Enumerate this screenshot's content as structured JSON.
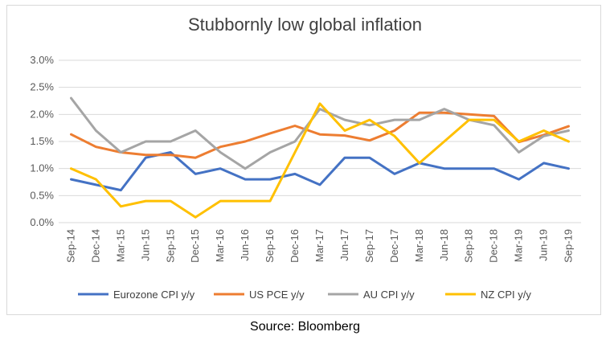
{
  "source": "Source: Bloomberg",
  "chart_data": {
    "type": "line",
    "title": "Stubbornly low global inflation",
    "xlabel": "",
    "ylabel": "",
    "ylim": [
      0,
      3
    ],
    "yticks": [
      "0.0%",
      "0.5%",
      "1.0%",
      "1.5%",
      "2.0%",
      "2.5%",
      "3.0%"
    ],
    "ytick_values": [
      0,
      0.5,
      1.0,
      1.5,
      2.0,
      2.5,
      3.0
    ],
    "grid": true,
    "legend_position": "bottom",
    "x": [
      "Sep-14",
      "Dec-14",
      "Mar-15",
      "Jun-15",
      "Sep-15",
      "Dec-15",
      "Mar-16",
      "Jun-16",
      "Sep-16",
      "Dec-16",
      "Mar-17",
      "Jun-17",
      "Sep-17",
      "Dec-17",
      "Mar-18",
      "Jun-18",
      "Sep-18",
      "Dec-18",
      "Mar-19",
      "Jun-19",
      "Sep-19"
    ],
    "series": [
      {
        "name": "Eurozone CPI y/y",
        "color": "#4472c4",
        "values": [
          0.8,
          0.7,
          0.6,
          1.2,
          1.3,
          0.9,
          1.0,
          0.8,
          0.8,
          0.9,
          0.7,
          1.2,
          1.2,
          0.9,
          1.1,
          1.0,
          1.0,
          1.0,
          0.8,
          1.1,
          1.0
        ]
      },
      {
        "name": "US PCE y/y",
        "color": "#ed7d31",
        "values": [
          1.63,
          1.4,
          1.3,
          1.25,
          1.25,
          1.2,
          1.4,
          1.5,
          1.65,
          1.79,
          1.63,
          1.61,
          1.52,
          1.7,
          2.03,
          2.03,
          2.0,
          1.97,
          1.49,
          1.62,
          1.78
        ]
      },
      {
        "name": "AU CPI y/y",
        "color": "#a5a5a5",
        "values": [
          2.3,
          1.7,
          1.3,
          1.5,
          1.5,
          1.7,
          1.3,
          1.0,
          1.3,
          1.5,
          2.1,
          1.9,
          1.8,
          1.9,
          1.9,
          2.1,
          1.9,
          1.8,
          1.3,
          1.6,
          1.7
        ]
      },
      {
        "name": "NZ CPI y/y",
        "color": "#ffc000",
        "values": [
          1.0,
          0.8,
          0.3,
          0.4,
          0.4,
          0.1,
          0.4,
          0.4,
          0.4,
          1.3,
          2.2,
          1.7,
          1.9,
          1.6,
          1.1,
          1.5,
          1.9,
          1.9,
          1.5,
          1.7,
          1.5
        ]
      }
    ]
  }
}
